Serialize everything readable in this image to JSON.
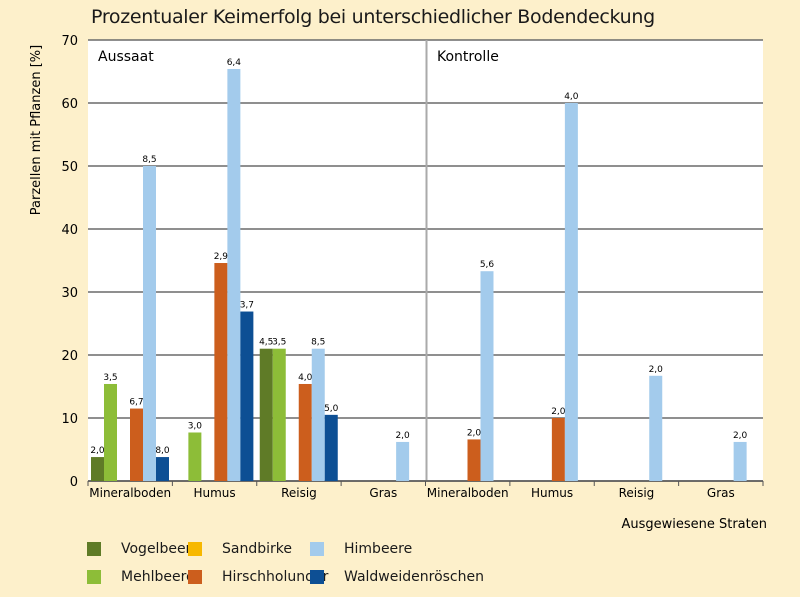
{
  "chart_data": {
    "type": "bar",
    "title": "Prozentualer Keimerfolg bei unterschiedlicher Bodendeckung",
    "xlabel": "Ausgewiesene Straten",
    "ylabel": "Parzellen mit Pflanzen [%]",
    "ylim": [
      0,
      70
    ],
    "yticks": [
      "0",
      "10",
      "20",
      "30",
      "40",
      "50",
      "60",
      "70"
    ],
    "grid": true,
    "legend_position": "bottom",
    "panels": [
      "Aussaat",
      "Kontrolle"
    ],
    "categories": [
      "Mineralboden",
      "Humus",
      "Reisig",
      "Gras",
      "Mineralboden",
      "Humus",
      "Reisig",
      "Gras"
    ],
    "series": [
      {
        "name": "Vogelbeere",
        "color": "#5f7b27",
        "values": [
          3.8,
          null,
          21,
          null,
          null,
          null,
          null,
          null
        ],
        "labels": [
          "2,0",
          null,
          "4,5",
          null,
          null,
          null,
          null,
          null
        ]
      },
      {
        "name": "Mehlbeere",
        "color": "#8dbd38",
        "values": [
          15.4,
          7.7,
          21,
          null,
          null,
          null,
          null,
          null
        ],
        "labels": [
          "3,5",
          "3,0",
          "3,5",
          null,
          null,
          null,
          null,
          null
        ]
      },
      {
        "name": "Sandbirke",
        "color": "#f7b800",
        "values": [
          null,
          null,
          null,
          null,
          null,
          null,
          null,
          null
        ],
        "labels": [
          null,
          null,
          null,
          null,
          null,
          null,
          null,
          null
        ]
      },
      {
        "name": "Hirschholunder",
        "color": "#cc5e1d",
        "values": [
          11.5,
          34.6,
          15.4,
          null,
          6.6,
          10,
          null,
          null
        ],
        "labels": [
          "6,7",
          "2,9",
          "4,0",
          null,
          "2,0",
          "2,0",
          null,
          null
        ]
      },
      {
        "name": "Himbeere",
        "color": "#a3cbec",
        "values": [
          50,
          65.4,
          21,
          6.2,
          33.3,
          60,
          16.7,
          6.2
        ],
        "labels": [
          "8,5",
          "6,4",
          "8,5",
          "2,0",
          "5,6",
          "4,0",
          "2,0",
          "2,0"
        ]
      },
      {
        "name": "Waldweidenröschen",
        "color": "#0d4f94",
        "values": [
          3.8,
          26.9,
          10.5,
          null,
          null,
          null,
          null,
          null
        ],
        "labels": [
          "8,0",
          "3,7",
          "5,0",
          null,
          null,
          null,
          null,
          null
        ]
      }
    ]
  }
}
